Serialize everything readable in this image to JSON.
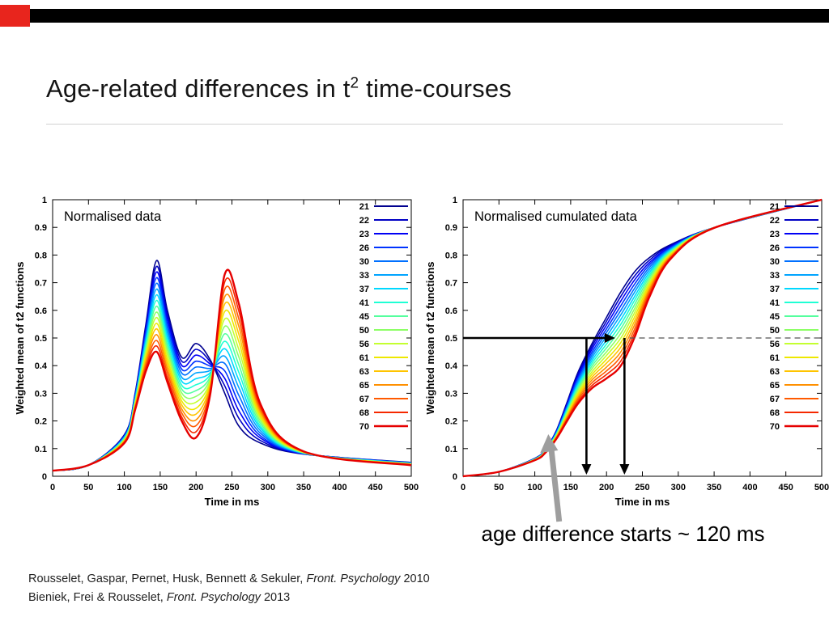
{
  "slide": {
    "title": {
      "pre": "Age-related differences in t",
      "sup": "2",
      "post": " time-courses"
    },
    "accent_red": "#E8251D",
    "bar_black": "#000000"
  },
  "note": {
    "text": "age difference starts ~ 120 ms"
  },
  "citations": [
    {
      "authors": "Rousselet, Gaspar, Pernet, Husk, Bennett & Sekuler, ",
      "journal": "Front. Psychology",
      "year": " 2010"
    },
    {
      "authors": "Bieniek, Frei & Rousselet, ",
      "journal": "Front. Psychology",
      "year": " 2013"
    }
  ],
  "chart_data": [
    {
      "type": "line",
      "title": "Normalised data",
      "xlabel": "Time in ms",
      "ylabel": "Weighted mean of t2 functions",
      "xlim": [
        0,
        500
      ],
      "ylim": [
        0,
        1
      ],
      "xticks": [
        0,
        50,
        100,
        150,
        200,
        250,
        300,
        350,
        400,
        450,
        500
      ],
      "yticks": [
        0,
        0.1,
        0.2,
        0.3,
        0.4,
        0.5,
        0.6,
        0.7,
        0.8,
        0.9,
        1
      ],
      "legend_position": "inside-right",
      "legend_entries": [
        "21",
        "22",
        "23",
        "26",
        "30",
        "33",
        "37",
        "41",
        "45",
        "50",
        "56",
        "61",
        "63",
        "65",
        "67",
        "68",
        "70"
      ],
      "x": [
        0,
        50,
        100,
        115,
        130,
        145,
        160,
        180,
        200,
        220,
        240,
        260,
        290,
        350,
        500
      ],
      "series": [
        {
          "name": "21",
          "color": "#00008F",
          "values": [
            0.02,
            0.04,
            0.15,
            0.3,
            0.55,
            0.78,
            0.6,
            0.43,
            0.48,
            0.42,
            0.3,
            0.18,
            0.12,
            0.08,
            0.05
          ]
        },
        {
          "name": "22",
          "color": "#0000C4",
          "values": [
            0.02,
            0.04,
            0.148,
            0.296,
            0.539,
            0.759,
            0.584,
            0.416,
            0.459,
            0.413,
            0.327,
            0.208,
            0.129,
            0.081,
            0.049
          ]
        },
        {
          "name": "23",
          "color": "#0000F5",
          "values": [
            0.02,
            0.04,
            0.146,
            0.293,
            0.529,
            0.739,
            0.568,
            0.401,
            0.438,
            0.405,
            0.354,
            0.235,
            0.138,
            0.081,
            0.049
          ]
        },
        {
          "name": "26",
          "color": "#0033FF",
          "values": [
            0.02,
            0.04,
            0.144,
            0.289,
            0.518,
            0.718,
            0.551,
            0.387,
            0.416,
            0.398,
            0.381,
            0.263,
            0.146,
            0.082,
            0.048
          ]
        },
        {
          "name": "30",
          "color": "#0070FF",
          "values": [
            0.02,
            0.04,
            0.143,
            0.285,
            0.508,
            0.698,
            0.535,
            0.373,
            0.395,
            0.39,
            0.408,
            0.29,
            0.155,
            0.083,
            0.048
          ]
        },
        {
          "name": "33",
          "color": "#00A4FF",
          "values": [
            0.02,
            0.04,
            0.141,
            0.281,
            0.497,
            0.677,
            0.519,
            0.358,
            0.374,
            0.383,
            0.434,
            0.318,
            0.164,
            0.083,
            0.047
          ]
        },
        {
          "name": "37",
          "color": "#00D8FF",
          "values": [
            0.02,
            0.04,
            0.139,
            0.278,
            0.486,
            0.656,
            0.503,
            0.344,
            0.353,
            0.375,
            0.461,
            0.345,
            0.173,
            0.084,
            0.046
          ]
        },
        {
          "name": "41",
          "color": "#1FFFD4",
          "values": [
            0.02,
            0.04,
            0.137,
            0.274,
            0.476,
            0.636,
            0.486,
            0.329,
            0.331,
            0.368,
            0.488,
            0.373,
            0.181,
            0.084,
            0.046
          ]
        },
        {
          "name": "45",
          "color": "#55FF9E",
          "values": [
            0.02,
            0.04,
            0.135,
            0.27,
            0.465,
            0.615,
            0.47,
            0.315,
            0.31,
            0.36,
            0.515,
            0.4,
            0.19,
            0.085,
            0.045
          ]
        },
        {
          "name": "50",
          "color": "#8DFF66",
          "values": [
            0.02,
            0.04,
            0.133,
            0.266,
            0.454,
            0.594,
            0.454,
            0.301,
            0.289,
            0.353,
            0.542,
            0.428,
            0.199,
            0.086,
            0.044
          ]
        },
        {
          "name": "56",
          "color": "#C4FF30",
          "values": [
            0.02,
            0.04,
            0.131,
            0.263,
            0.444,
            0.574,
            0.438,
            0.286,
            0.268,
            0.345,
            0.569,
            0.455,
            0.208,
            0.086,
            0.044
          ]
        },
        {
          "name": "61",
          "color": "#EEE800",
          "values": [
            0.02,
            0.04,
            0.129,
            0.259,
            0.433,
            0.553,
            0.421,
            0.272,
            0.246,
            0.338,
            0.596,
            0.483,
            0.216,
            0.087,
            0.043
          ]
        },
        {
          "name": "63",
          "color": "#FFC400",
          "values": [
            0.02,
            0.04,
            0.128,
            0.255,
            0.423,
            0.533,
            0.405,
            0.258,
            0.225,
            0.33,
            0.623,
            0.51,
            0.225,
            0.088,
            0.043
          ]
        },
        {
          "name": "65",
          "color": "#FF9000",
          "values": [
            0.02,
            0.04,
            0.126,
            0.251,
            0.412,
            0.512,
            0.389,
            0.243,
            0.204,
            0.323,
            0.649,
            0.538,
            0.234,
            0.088,
            0.042
          ]
        },
        {
          "name": "67",
          "color": "#FF5A00",
          "values": [
            0.02,
            0.04,
            0.124,
            0.248,
            0.401,
            0.491,
            0.373,
            0.229,
            0.183,
            0.315,
            0.676,
            0.565,
            0.243,
            0.089,
            0.041
          ]
        },
        {
          "name": "68",
          "color": "#F52800",
          "values": [
            0.02,
            0.04,
            0.122,
            0.244,
            0.391,
            0.471,
            0.356,
            0.214,
            0.161,
            0.308,
            0.703,
            0.593,
            0.251,
            0.089,
            0.041
          ]
        },
        {
          "name": "70",
          "color": "#E60000",
          "values": [
            0.02,
            0.04,
            0.12,
            0.24,
            0.38,
            0.45,
            0.34,
            0.2,
            0.14,
            0.3,
            0.73,
            0.62,
            0.26,
            0.09,
            0.04
          ]
        }
      ]
    },
    {
      "type": "line",
      "title": "Normalised cumulated data",
      "xlabel": "Time in ms",
      "ylabel": "Weighted mean of t2 functions",
      "xlim": [
        0,
        500
      ],
      "ylim": [
        0,
        1
      ],
      "xticks": [
        0,
        50,
        100,
        150,
        200,
        250,
        300,
        350,
        400,
        450,
        500
      ],
      "yticks": [
        0,
        0.1,
        0.2,
        0.3,
        0.4,
        0.5,
        0.6,
        0.7,
        0.8,
        0.9,
        1
      ],
      "legend_position": "inside-right",
      "legend_entries": [
        "21",
        "22",
        "23",
        "26",
        "30",
        "33",
        "37",
        "41",
        "45",
        "50",
        "56",
        "61",
        "63",
        "65",
        "67",
        "68",
        "70"
      ],
      "annotations": {
        "dashed_line": {
          "y": 0.5,
          "x_from": 232,
          "x_to": 500
        },
        "horizontal_arrow": {
          "y": 0.5,
          "x_from": 0,
          "x_to": 212
        },
        "down_arrows_x": [
          172,
          225
        ],
        "gray_arrow": {
          "points_to_ms": 120,
          "points_to_y": 0.15
        }
      },
      "x": [
        0,
        50,
        100,
        115,
        130,
        145,
        160,
        180,
        200,
        220,
        240,
        260,
        290,
        350,
        500
      ],
      "series": [
        {
          "name": "21",
          "color": "#00008F",
          "values": [
            0,
            0.016,
            0.065,
            0.099,
            0.165,
            0.268,
            0.375,
            0.481,
            0.575,
            0.667,
            0.742,
            0.791,
            0.838,
            0.899,
            1
          ]
        },
        {
          "name": "22",
          "color": "#0000C4",
          "values": [
            0,
            0.016,
            0.064,
            0.098,
            0.163,
            0.264,
            0.368,
            0.471,
            0.561,
            0.651,
            0.727,
            0.782,
            0.835,
            0.899,
            1
          ]
        },
        {
          "name": "23",
          "color": "#0000F5",
          "values": [
            0,
            0.016,
            0.064,
            0.097,
            0.161,
            0.259,
            0.361,
            0.461,
            0.547,
            0.634,
            0.713,
            0.773,
            0.831,
            0.899,
            1
          ]
        },
        {
          "name": "26",
          "color": "#0033FF",
          "values": [
            0,
            0.016,
            0.063,
            0.097,
            0.159,
            0.255,
            0.354,
            0.45,
            0.533,
            0.617,
            0.698,
            0.765,
            0.828,
            0.899,
            1
          ]
        },
        {
          "name": "30",
          "color": "#0070FF",
          "values": [
            0,
            0.016,
            0.063,
            0.096,
            0.157,
            0.251,
            0.347,
            0.44,
            0.52,
            0.6,
            0.683,
            0.756,
            0.825,
            0.899,
            1
          ]
        },
        {
          "name": "33",
          "color": "#00A4FF",
          "values": [
            0,
            0.016,
            0.062,
            0.095,
            0.155,
            0.247,
            0.339,
            0.43,
            0.506,
            0.584,
            0.669,
            0.747,
            0.822,
            0.899,
            1
          ]
        },
        {
          "name": "37",
          "color": "#00D8FF",
          "values": [
            0,
            0.016,
            0.062,
            0.094,
            0.154,
            0.242,
            0.332,
            0.42,
            0.492,
            0.567,
            0.654,
            0.738,
            0.819,
            0.899,
            1
          ]
        },
        {
          "name": "41",
          "color": "#1FFFD4",
          "values": [
            0,
            0.016,
            0.062,
            0.093,
            0.152,
            0.238,
            0.325,
            0.41,
            0.478,
            0.55,
            0.64,
            0.729,
            0.816,
            0.899,
            1
          ]
        },
        {
          "name": "45",
          "color": "#55FF9E",
          "values": [
            0,
            0.016,
            0.061,
            0.093,
            0.15,
            0.234,
            0.318,
            0.4,
            0.464,
            0.534,
            0.625,
            0.721,
            0.813,
            0.899,
            1
          ]
        },
        {
          "name": "50",
          "color": "#8DFF66",
          "values": [
            0,
            0.016,
            0.061,
            0.092,
            0.148,
            0.23,
            0.311,
            0.39,
            0.45,
            0.517,
            0.61,
            0.712,
            0.81,
            0.899,
            1
          ]
        },
        {
          "name": "56",
          "color": "#C4FF30",
          "values": [
            0,
            0.016,
            0.06,
            0.091,
            0.146,
            0.225,
            0.304,
            0.379,
            0.437,
            0.5,
            0.596,
            0.703,
            0.806,
            0.899,
            1
          ]
        },
        {
          "name": "61",
          "color": "#EEE800",
          "values": [
            0,
            0.016,
            0.06,
            0.09,
            0.144,
            0.221,
            0.297,
            0.369,
            0.423,
            0.484,
            0.581,
            0.694,
            0.803,
            0.899,
            1
          ]
        },
        {
          "name": "63",
          "color": "#FFC400",
          "values": [
            0,
            0.016,
            0.059,
            0.089,
            0.142,
            0.217,
            0.29,
            0.359,
            0.409,
            0.467,
            0.566,
            0.685,
            0.8,
            0.899,
            1
          ]
        },
        {
          "name": "65",
          "color": "#FF9000",
          "values": [
            0,
            0.016,
            0.059,
            0.088,
            0.14,
            0.213,
            0.283,
            0.349,
            0.395,
            0.45,
            0.552,
            0.676,
            0.797,
            0.899,
            1
          ]
        },
        {
          "name": "67",
          "color": "#FF5A00",
          "values": [
            0,
            0.016,
            0.058,
            0.088,
            0.138,
            0.208,
            0.276,
            0.339,
            0.381,
            0.434,
            0.537,
            0.668,
            0.794,
            0.899,
            1
          ]
        },
        {
          "name": "68",
          "color": "#F52800",
          "values": [
            0,
            0.016,
            0.058,
            0.087,
            0.137,
            0.204,
            0.269,
            0.329,
            0.368,
            0.417,
            0.523,
            0.659,
            0.791,
            0.899,
            1
          ]
        },
        {
          "name": "70",
          "color": "#E60000",
          "values": [
            0,
            0.016,
            0.058,
            0.086,
            0.135,
            0.2,
            0.262,
            0.319,
            0.354,
            0.4,
            0.508,
            0.65,
            0.788,
            0.898,
            1
          ]
        }
      ]
    }
  ]
}
